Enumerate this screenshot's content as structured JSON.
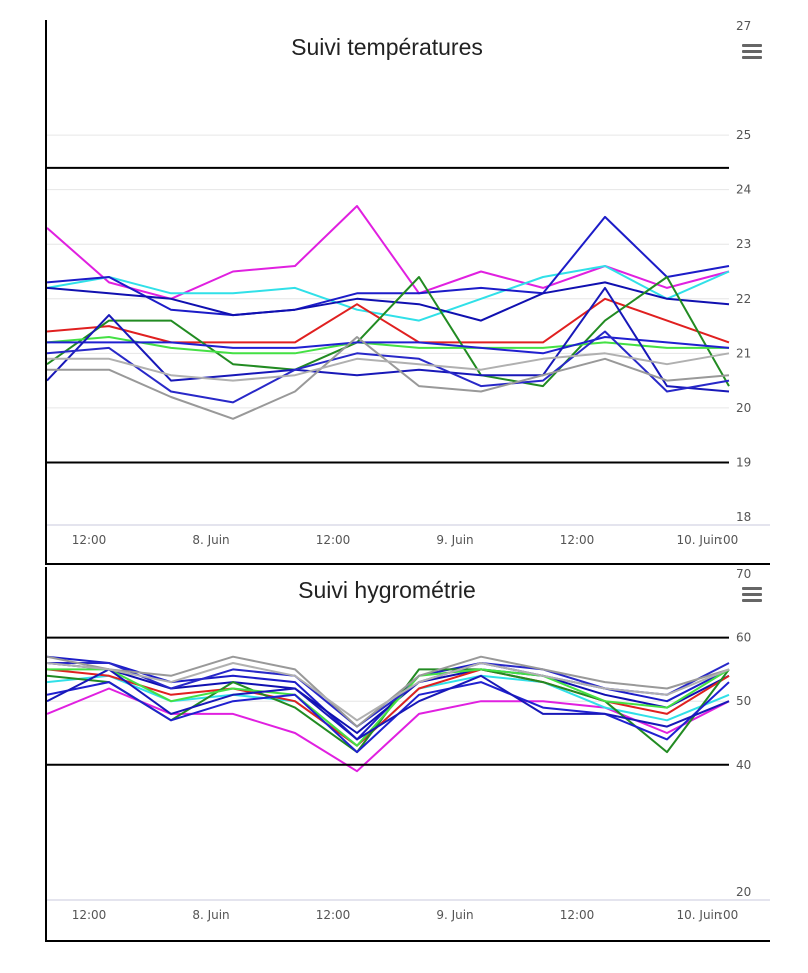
{
  "chart_data": [
    {
      "type": "line",
      "title": "Suivi températures",
      "ylim": [
        18,
        27
      ],
      "y_ticks": [
        "18",
        "19",
        "20",
        "21",
        "22",
        "23",
        "24",
        "25",
        "27"
      ],
      "x_ticks": [
        "12:00",
        "8. Juin",
        "12:00",
        "9. Juin",
        "12:00",
        "10. Juin",
        "00"
      ],
      "x": [
        "7 Jun 06:00",
        "7 Jun 12:00",
        "7 Jun 18:00",
        "8 Jun 00:00",
        "8 Jun 06:00",
        "8 Jun 12:00",
        "8 Jun 18:00",
        "9 Jun 00:00",
        "9 Jun 06:00",
        "9 Jun 12:00",
        "9 Jun 18:00",
        "10 Jun 00:00"
      ],
      "plot_lines": [
        24.4,
        19.0
      ],
      "legend": "none",
      "grid": true,
      "series": [
        {
          "color": "#e020e0",
          "values": [
            23.3,
            22.3,
            22.0,
            22.5,
            22.6,
            23.7,
            22.1,
            22.5,
            22.2,
            22.6,
            22.2,
            22.5
          ]
        },
        {
          "color": "#30e0e8",
          "values": [
            22.2,
            22.4,
            22.1,
            22.1,
            22.2,
            21.8,
            21.6,
            22.0,
            22.4,
            22.6,
            22.0,
            22.5
          ]
        },
        {
          "color": "#1c1cc8",
          "values": [
            22.3,
            22.4,
            21.8,
            21.7,
            21.8,
            22.1,
            22.1,
            22.2,
            22.1,
            23.5,
            22.4,
            22.6
          ]
        },
        {
          "color": "#1010b0",
          "values": [
            22.2,
            22.1,
            22.0,
            21.7,
            21.8,
            22.0,
            21.9,
            21.6,
            22.1,
            22.3,
            22.0,
            21.9
          ]
        },
        {
          "color": "#e02020",
          "values": [
            21.4,
            21.5,
            21.2,
            21.2,
            21.2,
            21.9,
            21.2,
            21.2,
            21.2,
            22.0,
            21.6,
            21.2
          ]
        },
        {
          "color": "#228b22",
          "values": [
            20.8,
            21.6,
            21.6,
            20.8,
            20.7,
            21.2,
            22.4,
            20.6,
            20.4,
            21.6,
            22.4,
            20.4
          ]
        },
        {
          "color": "#44e044",
          "values": [
            21.2,
            21.3,
            21.1,
            21.0,
            21.0,
            21.2,
            21.1,
            21.1,
            21.1,
            21.2,
            21.1,
            21.1
          ]
        },
        {
          "color": "#2020d0",
          "values": [
            21.2,
            21.2,
            21.2,
            21.1,
            21.1,
            21.2,
            21.2,
            21.1,
            21.0,
            21.3,
            21.2,
            21.1
          ]
        },
        {
          "color": "#1818b8",
          "values": [
            20.5,
            21.7,
            20.5,
            20.6,
            20.7,
            20.6,
            20.7,
            20.6,
            20.6,
            22.2,
            20.4,
            20.3
          ]
        },
        {
          "color": "#2828c8",
          "values": [
            21.0,
            21.1,
            20.3,
            20.1,
            20.7,
            21.0,
            20.9,
            20.4,
            20.5,
            21.4,
            20.3,
            20.5
          ]
        },
        {
          "color": "#999999",
          "values": [
            20.7,
            20.7,
            20.2,
            19.8,
            20.3,
            21.3,
            20.4,
            20.3,
            20.6,
            20.9,
            20.5,
            20.6
          ]
        },
        {
          "color": "#b0b0b0",
          "values": [
            20.9,
            20.9,
            20.6,
            20.5,
            20.6,
            20.9,
            20.8,
            20.7,
            20.9,
            21.0,
            20.8,
            21.0
          ]
        }
      ]
    },
    {
      "type": "line",
      "title": "Suivi hygrométrie",
      "ylim": [
        20,
        70
      ],
      "y_ticks": [
        "20",
        "40",
        "50",
        "60",
        "70"
      ],
      "x_ticks": [
        "12:00",
        "8. Juin",
        "12:00",
        "9. Juin",
        "12:00",
        "10. Juin",
        "00"
      ],
      "x": [
        "7 Jun 06:00",
        "7 Jun 12:00",
        "7 Jun 18:00",
        "8 Jun 00:00",
        "8 Jun 06:00",
        "8 Jun 12:00",
        "8 Jun 18:00",
        "9 Jun 00:00",
        "9 Jun 06:00",
        "9 Jun 12:00",
        "9 Jun 18:00",
        "10 Jun 00:00"
      ],
      "plot_lines": [
        60,
        40
      ],
      "legend": "none",
      "grid": true,
      "series": [
        {
          "color": "#e020e0",
          "values": [
            48,
            52,
            48,
            48,
            45,
            39,
            48,
            50,
            50,
            49,
            45,
            50
          ]
        },
        {
          "color": "#30e0e8",
          "values": [
            53,
            54,
            50,
            51,
            50,
            43,
            52,
            54,
            53,
            49,
            47,
            51
          ]
        },
        {
          "color": "#1c1cc8",
          "values": [
            57,
            56,
            53,
            54,
            53,
            44,
            54,
            56,
            54,
            52,
            50,
            55
          ]
        },
        {
          "color": "#1010b0",
          "values": [
            56,
            55,
            52,
            53,
            52,
            45,
            53,
            55,
            54,
            51,
            49,
            54
          ]
        },
        {
          "color": "#e02020",
          "values": [
            55,
            54,
            51,
            52,
            50,
            43,
            52,
            55,
            53,
            50,
            48,
            54
          ]
        },
        {
          "color": "#228b22",
          "values": [
            54,
            53,
            47,
            53,
            49,
            42,
            55,
            55,
            53,
            50,
            42,
            55
          ]
        },
        {
          "color": "#44e044",
          "values": [
            55,
            55,
            50,
            52,
            51,
            43,
            54,
            55,
            54,
            50,
            49,
            55
          ]
        },
        {
          "color": "#2020d0",
          "values": [
            51,
            53,
            47,
            50,
            51,
            42,
            51,
            53,
            49,
            48,
            44,
            53
          ]
        },
        {
          "color": "#1818b8",
          "values": [
            50,
            55,
            48,
            51,
            52,
            44,
            50,
            54,
            48,
            48,
            46,
            50
          ]
        },
        {
          "color": "#2828c8",
          "values": [
            56,
            56,
            52,
            55,
            54,
            46,
            53,
            56,
            55,
            52,
            51,
            56
          ]
        },
        {
          "color": "#999999",
          "values": [
            57,
            55,
            54,
            57,
            55,
            46,
            54,
            57,
            55,
            53,
            52,
            55
          ]
        },
        {
          "color": "#b0b0b0",
          "values": [
            56,
            55,
            53,
            56,
            54,
            47,
            53,
            56,
            54,
            52,
            51,
            55
          ]
        }
      ]
    }
  ]
}
